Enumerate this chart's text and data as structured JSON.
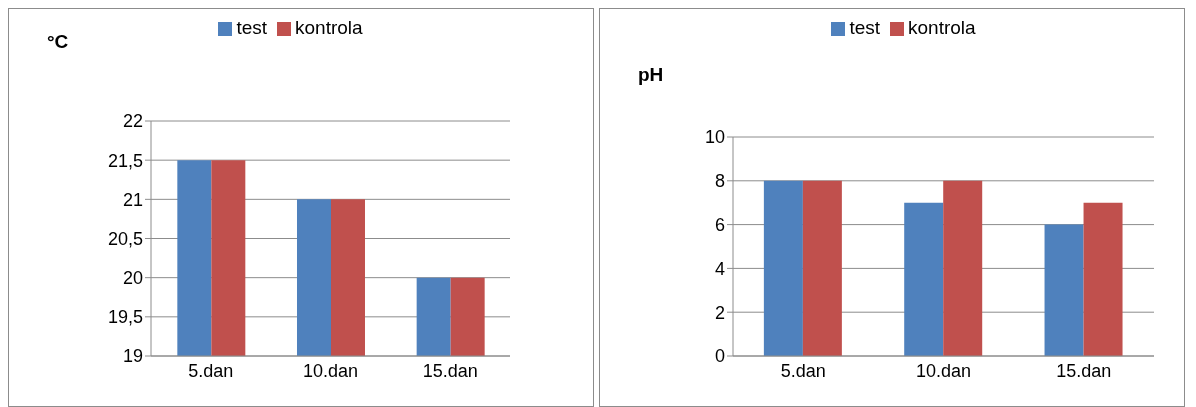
{
  "chart_data": [
    {
      "type": "bar",
      "ylabel": "°C",
      "categories": [
        "5.dan",
        "10.dan",
        "15.dan"
      ],
      "series": [
        {
          "name": "test",
          "color": "#4f81bd",
          "values": [
            21.5,
            21,
            20
          ]
        },
        {
          "name": "kontrola",
          "color": "#c0504d",
          "values": [
            21.5,
            21,
            20
          ]
        }
      ],
      "ylim": [
        19,
        22
      ],
      "yticks": [
        19,
        {
          "value": 19.5,
          "label": "19,5"
        },
        20,
        {
          "value": 20.5,
          "label": "20,5"
        },
        21,
        {
          "value": 21.5,
          "label": "21,5"
        },
        22
      ],
      "grid": "y",
      "legend": "top"
    },
    {
      "type": "bar",
      "ylabel": "pH",
      "categories": [
        "5.dan",
        "10.dan",
        "15.dan"
      ],
      "series": [
        {
          "name": "test",
          "color": "#4f81bd",
          "values": [
            8,
            7,
            6
          ]
        },
        {
          "name": "kontrola",
          "color": "#c0504d",
          "values": [
            8,
            8,
            7
          ]
        }
      ],
      "ylim": [
        0,
        10
      ],
      "yticks": [
        0,
        2,
        4,
        6,
        8,
        10
      ],
      "grid": "y",
      "legend": "top"
    }
  ]
}
